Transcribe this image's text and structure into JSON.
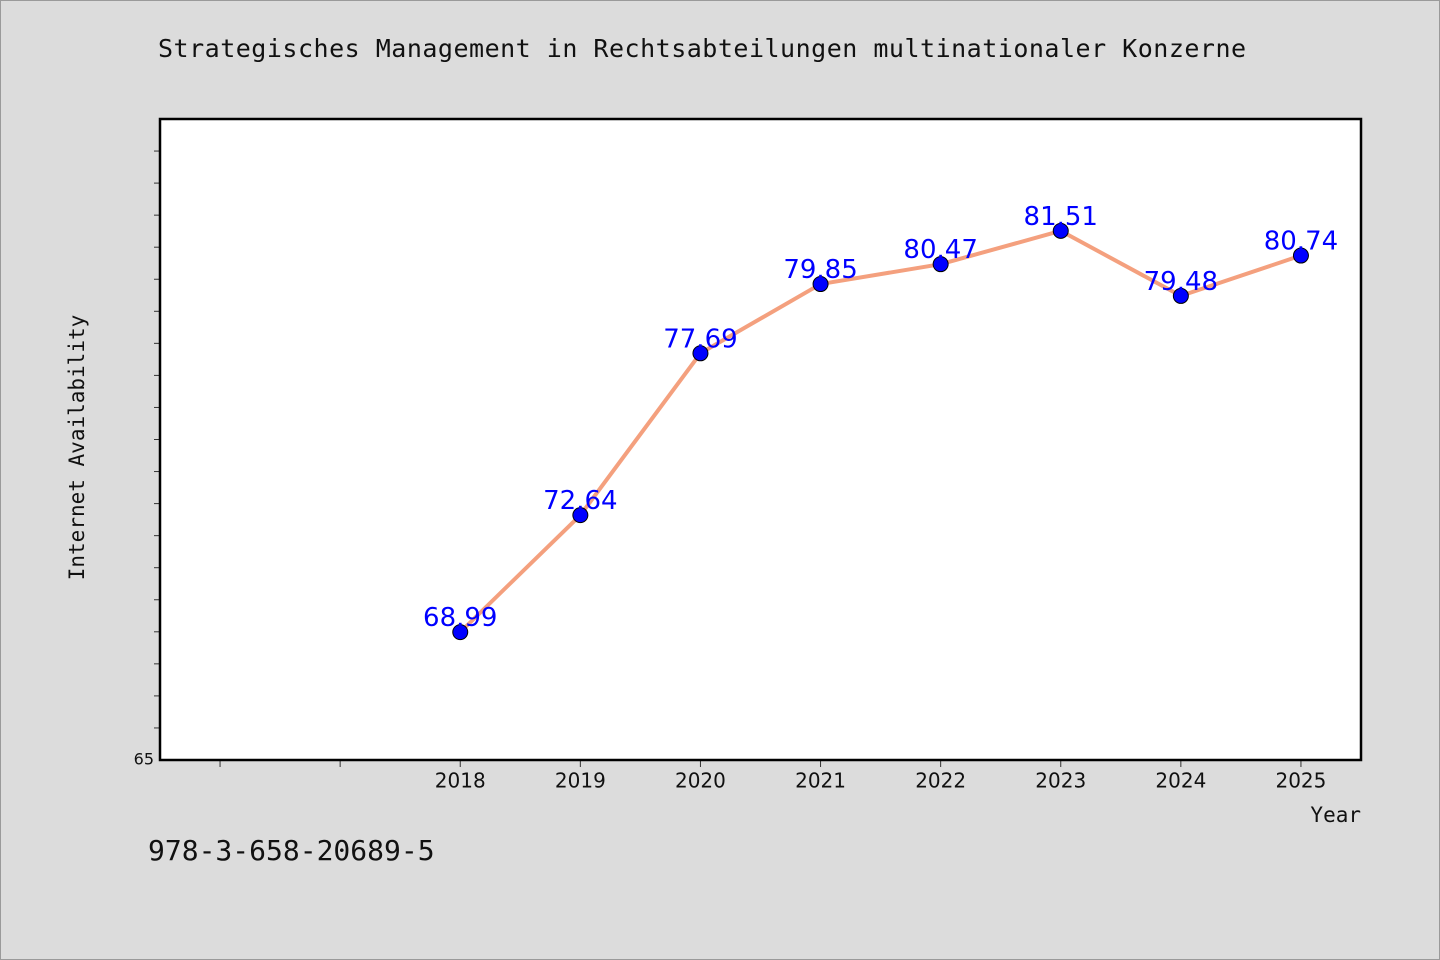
{
  "chart_data": {
    "type": "line",
    "title": "Strategisches Management in Rechtsabteilungen multinationaler Konzerne",
    "xlabel": "Year",
    "ylabel": "Internet Availability",
    "x": [
      "2018",
      "2019",
      "2020",
      "2021",
      "2022",
      "2023",
      "2024",
      "2025"
    ],
    "series": [
      {
        "values": [
          68.99,
          72.64,
          77.69,
          79.85,
          80.47,
          81.51,
          79.48,
          80.74
        ],
        "labels": [
          "68.99",
          "72.64",
          "77.69",
          "79.85",
          "80.47",
          "81.51",
          "79.48",
          "80.74"
        ],
        "line_color": "#f4a07e",
        "marker_color": "#0000ff"
      }
    ],
    "x_index_range": [
      -2.5,
      7.5
    ],
    "ylim": [
      65,
      85
    ],
    "y_tick_labels": [
      "65"
    ],
    "grid": false,
    "legend": false
  },
  "footer": {
    "code": "978-3-658-20689-5"
  }
}
